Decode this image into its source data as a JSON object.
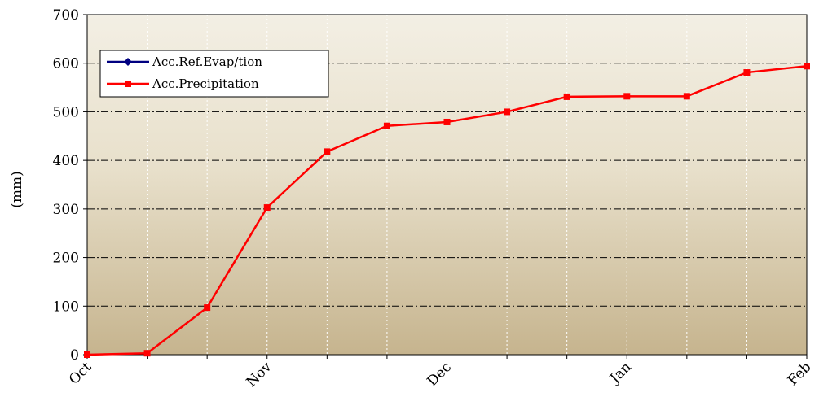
{
  "chart_data": {
    "type": "line",
    "ylabel": "(mm)",
    "xlabel": "",
    "ylim": [
      0,
      700
    ],
    "yticks": [
      0,
      100,
      200,
      300,
      400,
      500,
      600,
      700
    ],
    "x_ticks": [
      "Oct",
      "Nov",
      "Dec",
      "Jan",
      "Feb"
    ],
    "x_positions": [
      "Oct",
      "",
      "",
      "Nov",
      "",
      "",
      "Dec",
      "",
      "",
      "Jan",
      "",
      "",
      "Feb"
    ],
    "grid": "horizontal dash-dot",
    "legend_position": "top-left",
    "series": [
      {
        "name": "Acc.Ref.Evap/tion",
        "color": "#000080",
        "marker": "diamond",
        "values": []
      },
      {
        "name": "Acc.Precipitation",
        "color": "#ff0000",
        "marker": "square",
        "values": [
          0,
          3,
          97,
          303,
          418,
          471,
          479,
          500,
          531,
          532,
          532,
          581,
          594
        ]
      }
    ]
  }
}
